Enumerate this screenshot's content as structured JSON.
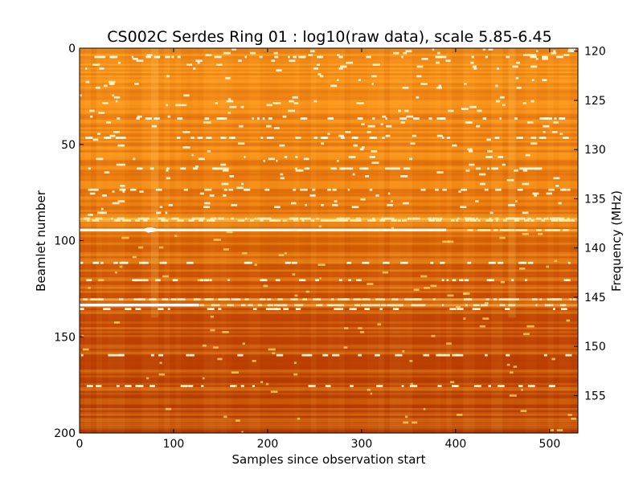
{
  "chart_data": {
    "type": "heatmap",
    "title": "CS002C Serdes Ring 01 : log10(raw data), scale 5.85-6.45",
    "xlabel": "Samples since observation start",
    "ylabel": "Beamlet number",
    "y2label": "Frequency (MHz)",
    "xlim": [
      0,
      530
    ],
    "ylim": [
      0,
      200
    ],
    "y_inverted": true,
    "y2lim": [
      119.7,
      158.8
    ],
    "x_ticks": [
      0,
      100,
      200,
      300,
      400,
      500
    ],
    "x_tick_labels": [
      "0",
      "100",
      "200",
      "300",
      "400",
      "500"
    ],
    "y_ticks": [
      0,
      50,
      100,
      150,
      200
    ],
    "y_tick_labels": [
      "0",
      "50",
      "100",
      "150",
      "200"
    ],
    "y2_ticks": [
      120,
      125,
      130,
      135,
      140,
      145,
      150,
      155
    ],
    "y2_tick_labels": [
      "120",
      "125",
      "130",
      "135",
      "140",
      "145",
      "150",
      "155"
    ],
    "color_scale": {
      "min": 5.85,
      "max": 6.45,
      "colormap": "afmhot"
    },
    "grid": false,
    "features": {
      "strong_rfi_beamlets": [
        88,
        89,
        94,
        130,
        133
      ],
      "moderate_rfi_beamlets": [
        4,
        36,
        46,
        62,
        73,
        111,
        120,
        135,
        159,
        175
      ],
      "bright_line_segments": [
        {
          "beamlet": 94,
          "x_start": 0,
          "x_end": 390
        },
        {
          "beamlet": 133,
          "x_start": 0,
          "x_end": 127
        }
      ],
      "bright_columns": [
        80,
        460
      ]
    }
  }
}
